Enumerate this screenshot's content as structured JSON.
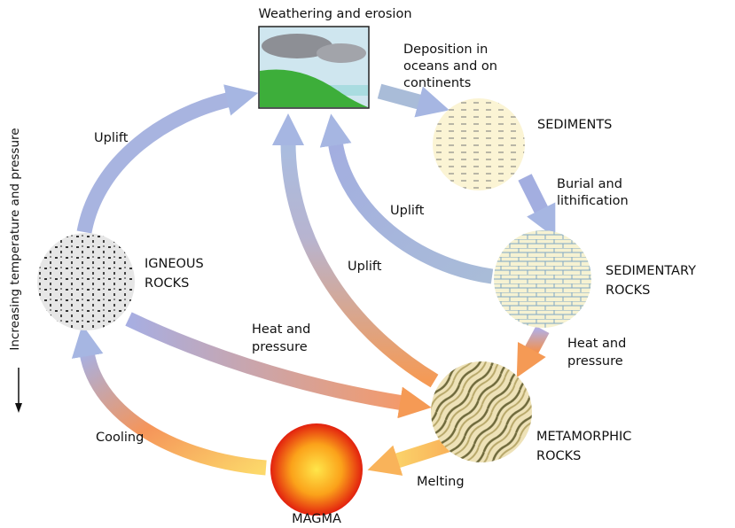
{
  "axis_label": "Increasing temperature and pressure",
  "nodes": [
    {
      "label": [
        "Weathering and erosion"
      ]
    },
    {
      "label": [
        "SEDIMENTS"
      ]
    },
    {
      "label": [
        "SEDIMENTARY",
        "ROCKS"
      ]
    },
    {
      "label": [
        "METAMORPHIC",
        "ROCKS"
      ]
    },
    {
      "label": [
        "MAGMA"
      ]
    },
    {
      "label": [
        "IGNEOUS",
        "ROCKS"
      ]
    }
  ],
  "edges": [
    {
      "label": [
        "Deposition in",
        "oceans and on",
        "continents"
      ]
    },
    {
      "label": [
        "Burial and",
        "lithification"
      ]
    },
    {
      "label": [
        "Uplift"
      ]
    },
    {
      "label": [
        "Uplift"
      ]
    },
    {
      "label": [
        "Uplift"
      ]
    },
    {
      "label": [
        "Heat and",
        "pressure"
      ]
    },
    {
      "label": [
        "Heat and",
        "pressure"
      ]
    },
    {
      "label": [
        "Melting"
      ]
    },
    {
      "label": [
        "Cooling"
      ]
    }
  ]
}
